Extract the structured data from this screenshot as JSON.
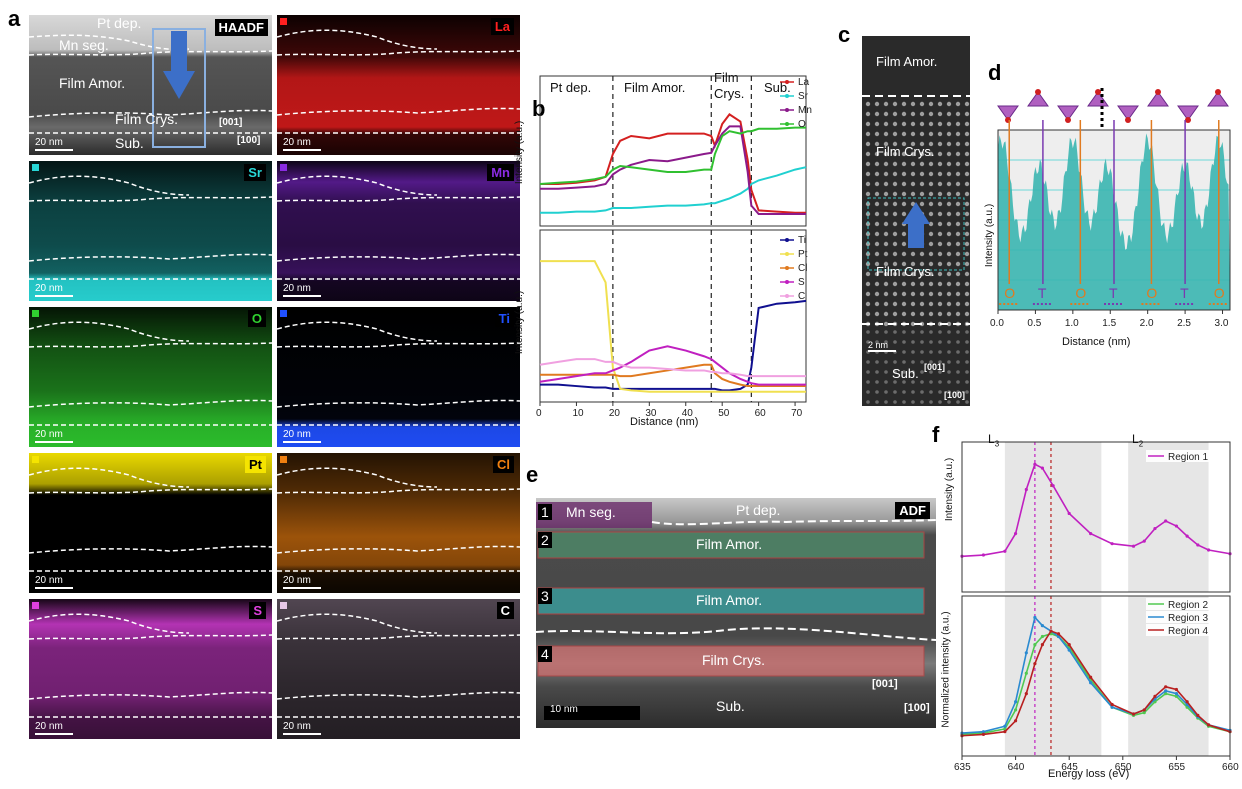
{
  "panel_letters": {
    "a": "a",
    "b": "b",
    "c": "c",
    "d": "d",
    "e": "e",
    "f": "f"
  },
  "panel_a": {
    "haadf": {
      "label": "HAADF",
      "pt_dep": "Pt dep.",
      "mn_seg": "Mn seg.",
      "film_amor": "Film Amor.",
      "film_crys": "Film Crys.",
      "sub": "Sub.",
      "dir_001": "[001]",
      "dir_100": "[100]"
    },
    "scale": "20 nm",
    "maps": [
      {
        "element": "La",
        "color": "#ff2020"
      },
      {
        "element": "Sr",
        "color": "#28d7d7"
      },
      {
        "element": "Mn",
        "color": "#8a2be2"
      },
      {
        "element": "O",
        "color": "#30d030"
      },
      {
        "element": "Ti",
        "color": "#2050ff"
      },
      {
        "element": "Pt",
        "color": "#f5e400"
      },
      {
        "element": "Cl",
        "color": "#f08010"
      },
      {
        "element": "S",
        "color": "#e040e0"
      },
      {
        "element": "C",
        "color": "#e8c8e8"
      }
    ]
  },
  "panel_b": {
    "regions": [
      "Pt dep.",
      "Film Amor.",
      "Film",
      "Crys.",
      "Sub."
    ],
    "ylabel_top": "Intensity (a.u.)",
    "ylabel_bottom": "Intensity (a.u.)",
    "xlabel": "Distance (nm)",
    "xticks": [
      "0",
      "10",
      "20",
      "30",
      "40",
      "50",
      "60",
      "70"
    ]
  },
  "panel_c": {
    "film_amor": "Film Amor.",
    "film_crys_top": "Film Crys.",
    "film_crys_bottom": "Film Crys.",
    "sub": "Sub.",
    "scale": "2 nm",
    "dir_001": "[001]",
    "dir_100": "[100]"
  },
  "panel_d": {
    "ylabel": "Intensity (a.u.)",
    "xlabel": "Distance (nm)",
    "xticks": [
      "0.0",
      "0.5",
      "1.0",
      "1.5",
      "2.0",
      "2.5",
      "3.0"
    ],
    "site_labels": [
      "O",
      "T",
      "O",
      "T",
      "O",
      "T",
      "O"
    ]
  },
  "panel_e": {
    "adf": "ADF",
    "mn_seg": "Mn seg.",
    "pt_dep": "Pt dep.",
    "regions": [
      {
        "num": "1",
        "label": ""
      },
      {
        "num": "2",
        "label": "Film Amor."
      },
      {
        "num": "3",
        "label": "Film Amor."
      },
      {
        "num": "4",
        "label": "Film Crys."
      }
    ],
    "sub": "Sub.",
    "scale": "10 nm",
    "dir_001": "[001]",
    "dir_100": "[100]"
  },
  "panel_f": {
    "L3": "L",
    "L3_sub": "3",
    "L2": "L",
    "L2_sub": "2",
    "ylabel_top": "Intensity (a.u.)",
    "ylabel_bottom": "Normalized intensity (a.u.)",
    "xlabel": "Energy loss (eV)",
    "xticks": [
      "635",
      "640",
      "645",
      "650",
      "655",
      "660"
    ]
  },
  "chart_data": [
    {
      "type": "line",
      "xlabel": "Distance (nm)",
      "ylabel": "Intensity (a.u.)",
      "xlim": [
        0,
        73
      ],
      "x": [
        0,
        5,
        10,
        15,
        18,
        20,
        22,
        25,
        30,
        35,
        40,
        45,
        47,
        48,
        50,
        52,
        55,
        57,
        58,
        60,
        65,
        70,
        73
      ],
      "series": [
        {
          "name": "La",
          "color": "#d42020",
          "values": [
            0.3,
            0.3,
            0.31,
            0.33,
            0.36,
            0.55,
            0.66,
            0.7,
            0.68,
            0.72,
            0.72,
            0.72,
            0.7,
            0.62,
            0.8,
            0.88,
            0.82,
            0.5,
            0.25,
            0.08,
            0.07,
            0.06,
            0.06
          ]
        },
        {
          "name": "Sr",
          "color": "#20d0d0",
          "values": [
            0.06,
            0.06,
            0.07,
            0.07,
            0.08,
            0.1,
            0.1,
            0.1,
            0.11,
            0.12,
            0.12,
            0.13,
            0.14,
            0.14,
            0.16,
            0.18,
            0.22,
            0.26,
            0.3,
            0.33,
            0.37,
            0.42,
            0.44
          ]
        },
        {
          "name": "Mn",
          "color": "#8b1a8b",
          "values": [
            0.26,
            0.26,
            0.27,
            0.28,
            0.3,
            0.38,
            0.42,
            0.46,
            0.5,
            0.49,
            0.52,
            0.55,
            0.56,
            0.62,
            0.72,
            0.78,
            0.78,
            0.4,
            0.12,
            0.05,
            0.05,
            0.05,
            0.05
          ]
        },
        {
          "name": "O",
          "color": "#30c030",
          "values": [
            0.3,
            0.31,
            0.32,
            0.34,
            0.36,
            0.42,
            0.45,
            0.44,
            0.42,
            0.4,
            0.4,
            0.42,
            0.42,
            0.55,
            0.7,
            0.74,
            0.72,
            0.74,
            0.74,
            0.76,
            0.76,
            0.77,
            0.77
          ]
        }
      ]
    },
    {
      "type": "line",
      "xlabel": "Distance (nm)",
      "ylabel": "Intensity (a.u.)",
      "xlim": [
        0,
        73
      ],
      "x": [
        0,
        5,
        10,
        15,
        18,
        20,
        22,
        25,
        30,
        35,
        40,
        45,
        47,
        48,
        50,
        52,
        55,
        57,
        58,
        60,
        65,
        70,
        73
      ],
      "series": [
        {
          "name": "Ti",
          "color": "#101090",
          "values": [
            0.08,
            0.08,
            0.07,
            0.06,
            0.06,
            0.05,
            0.05,
            0.05,
            0.05,
            0.05,
            0.05,
            0.05,
            0.05,
            0.05,
            0.04,
            0.04,
            0.05,
            0.08,
            0.2,
            0.62,
            0.65,
            0.66,
            0.67
          ]
        },
        {
          "name": "Pt",
          "color": "#f0e050",
          "values": [
            0.95,
            0.95,
            0.95,
            0.95,
            0.8,
            0.2,
            0.05,
            0.04,
            0.03,
            0.03,
            0.03,
            0.03,
            0.03,
            0.03,
            0.03,
            0.03,
            0.03,
            0.03,
            0.03,
            0.03,
            0.03,
            0.03,
            0.03
          ]
        },
        {
          "name": "Cl",
          "color": "#e07a20",
          "values": [
            0.15,
            0.15,
            0.15,
            0.15,
            0.15,
            0.15,
            0.14,
            0.14,
            0.16,
            0.18,
            0.2,
            0.22,
            0.22,
            0.16,
            0.12,
            0.1,
            0.08,
            0.07,
            0.07,
            0.07,
            0.07,
            0.07,
            0.07
          ]
        },
        {
          "name": "S",
          "color": "#c020c0",
          "values": [
            0.1,
            0.12,
            0.14,
            0.16,
            0.16,
            0.18,
            0.2,
            0.24,
            0.32,
            0.35,
            0.32,
            0.28,
            0.26,
            0.24,
            0.2,
            0.16,
            0.12,
            0.1,
            0.09,
            0.08,
            0.08,
            0.08,
            0.08
          ]
        },
        {
          "name": "C",
          "color": "#f0a0e0",
          "values": [
            0.22,
            0.24,
            0.26,
            0.26,
            0.24,
            0.24,
            0.22,
            0.2,
            0.2,
            0.19,
            0.18,
            0.18,
            0.17,
            0.17,
            0.16,
            0.16,
            0.15,
            0.14,
            0.14,
            0.14,
            0.14,
            0.14,
            0.14
          ]
        }
      ]
    },
    {
      "type": "area",
      "xlabel": "Distance (nm)",
      "ylabel": "Intensity (a.u.)",
      "xlim": [
        0,
        3.1
      ],
      "peaks": [
        0.05,
        0.55,
        1.0,
        1.45,
        2.0,
        2.5,
        2.95
      ]
    },
    {
      "type": "line",
      "xlabel": "Energy loss (eV)",
      "ylabel": "Intensity (a.u.)",
      "xlim": [
        635,
        660
      ],
      "series": [
        {
          "name": "Region 1",
          "color": "#c020c0",
          "x": [
            635,
            637,
            639,
            640,
            641,
            641.8,
            642.5,
            643.5,
            645,
            647,
            649,
            651,
            652,
            653,
            654,
            655,
            656,
            657,
            658,
            660
          ],
          "values": [
            0.22,
            0.23,
            0.26,
            0.4,
            0.75,
            0.95,
            0.92,
            0.78,
            0.56,
            0.4,
            0.32,
            0.3,
            0.34,
            0.44,
            0.5,
            0.46,
            0.38,
            0.31,
            0.27,
            0.24
          ]
        }
      ]
    },
    {
      "type": "line",
      "xlabel": "Energy loss (eV)",
      "ylabel": "Normalized intensity (a.u.)",
      "xlim": [
        635,
        660
      ],
      "series": [
        {
          "name": "Region 2",
          "color": "#50c850",
          "x": [
            635,
            637,
            639,
            640,
            641,
            641.8,
            642.5,
            643.3,
            644,
            645,
            647,
            649,
            651,
            652,
            653,
            654,
            655,
            656,
            657,
            658,
            660
          ],
          "values": [
            0.1,
            0.11,
            0.14,
            0.28,
            0.55,
            0.76,
            0.82,
            0.84,
            0.82,
            0.74,
            0.5,
            0.3,
            0.24,
            0.26,
            0.34,
            0.4,
            0.38,
            0.3,
            0.22,
            0.16,
            0.12
          ]
        },
        {
          "name": "Region 3",
          "color": "#2a8ad0",
          "x": [
            635,
            637,
            639,
            640,
            641,
            641.8,
            642.5,
            643.3,
            644,
            645,
            647,
            649,
            651,
            652,
            653,
            654,
            655,
            656,
            657,
            658,
            660
          ],
          "values": [
            0.11,
            0.12,
            0.16,
            0.34,
            0.7,
            0.96,
            0.9,
            0.86,
            0.82,
            0.72,
            0.48,
            0.3,
            0.25,
            0.28,
            0.36,
            0.42,
            0.4,
            0.32,
            0.23,
            0.17,
            0.13
          ]
        },
        {
          "name": "Region 4",
          "color": "#b82020",
          "x": [
            635,
            637,
            639,
            640,
            641,
            641.8,
            642.5,
            643.3,
            644,
            645,
            647,
            649,
            651,
            652,
            653,
            654,
            655,
            656,
            657,
            658,
            660
          ],
          "values": [
            0.09,
            0.1,
            0.12,
            0.2,
            0.4,
            0.62,
            0.76,
            0.86,
            0.84,
            0.76,
            0.52,
            0.32,
            0.25,
            0.28,
            0.38,
            0.45,
            0.43,
            0.34,
            0.24,
            0.17,
            0.12
          ]
        }
      ]
    }
  ]
}
